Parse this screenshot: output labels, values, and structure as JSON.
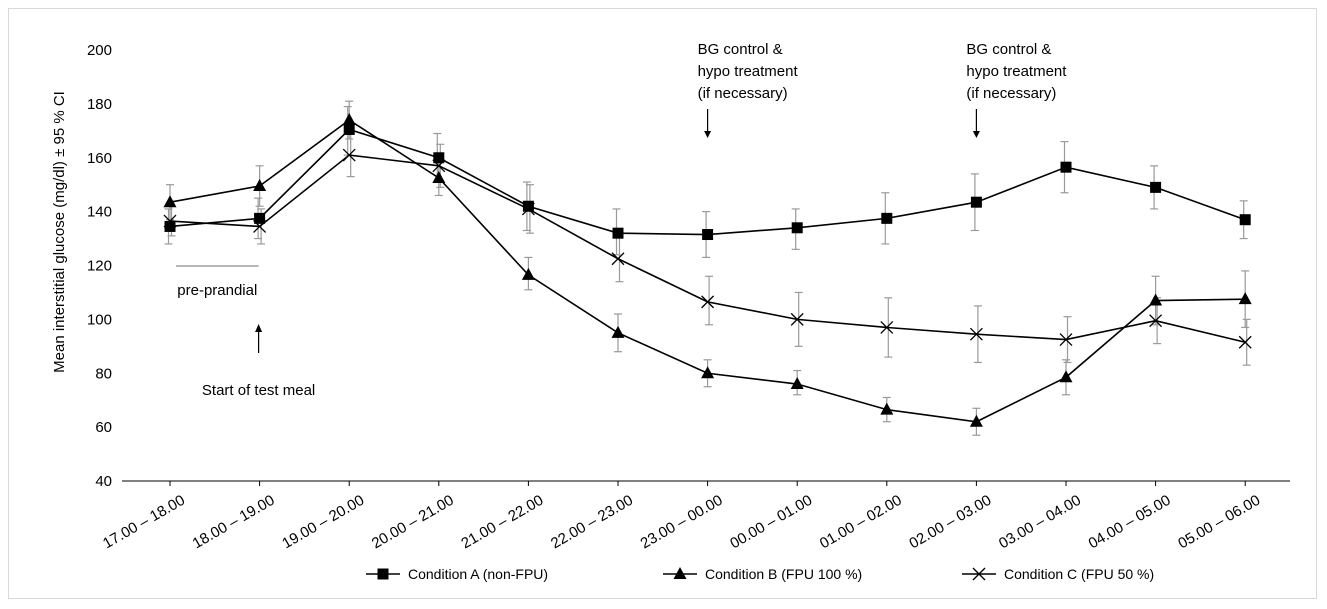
{
  "chart_data": {
    "type": "line",
    "ylabel": "Mean interstitial glucose (mg/dl) ± 95 % CI",
    "xlabel": "",
    "ylim": [
      40,
      200
    ],
    "yticks": [
      40,
      60,
      80,
      100,
      120,
      140,
      160,
      180,
      200
    ],
    "categories": [
      "17.00 – 18.00",
      "18.00 – 19.00",
      "19.00 – 20.00",
      "20.00 – 21.00",
      "21.00 – 22.00",
      "22.00 – 23.00",
      "23.00 – 00.00",
      "00.00 – 01.00",
      "01.00 – 02.00",
      "02.00 – 03.00",
      "03.00 – 04.00",
      "04.00 – 05.00",
      "05.00 – 06.00"
    ],
    "grid": false,
    "legend_position": "bottom",
    "series": [
      {
        "name": "Condition A (non-FPU)",
        "marker": "square",
        "values": [
          134.5,
          137.5,
          170.5,
          160,
          142,
          132,
          131.5,
          134,
          137.5,
          143.5,
          156.5,
          149,
          137
        ],
        "ci_low": [
          128,
          130,
          161,
          151,
          133,
          124,
          123,
          126,
          128,
          133,
          147,
          141,
          130
        ],
        "ci_high": [
          141,
          145,
          179,
          169,
          151,
          141,
          140,
          141,
          147,
          154,
          166,
          157,
          144
        ]
      },
      {
        "name": "Condition B (FPU 100 %)",
        "marker": "triangle",
        "values": [
          143.5,
          149.5,
          174,
          152.5,
          116.5,
          95,
          80,
          76,
          66.5,
          62,
          78.5,
          107,
          107.5
        ],
        "ci_low": [
          137,
          142,
          167,
          146,
          111,
          88,
          75,
          72,
          62,
          57,
          72,
          98,
          97
        ],
        "ci_high": [
          150,
          157,
          181,
          160,
          123,
          102,
          85,
          81,
          71,
          67,
          85,
          116,
          118
        ]
      },
      {
        "name": "Condition C (FPU 50 %)",
        "marker": "x",
        "values": [
          136.5,
          134.5,
          161,
          157,
          141,
          122.5,
          106.5,
          100,
          97,
          94.5,
          92.5,
          99.5,
          91.5
        ],
        "ci_low": [
          131,
          128,
          153,
          149,
          132,
          114,
          98,
          90,
          86,
          84,
          84,
          91,
          83
        ],
        "ci_high": [
          142,
          141,
          169,
          165,
          150,
          131,
          116,
          110,
          108,
          105,
          101,
          108,
          100
        ]
      }
    ],
    "annotations": [
      {
        "id": "bg1",
        "lines": [
          "BG control &",
          "hypo treatment",
          "(if necessary)"
        ],
        "category_index": 6,
        "arrow": "down"
      },
      {
        "id": "bg2",
        "lines": [
          "BG control &",
          "hypo treatment",
          "(if necessary)"
        ],
        "category_index": 9,
        "arrow": "down"
      },
      {
        "id": "preprandial",
        "text": "pre-prandial",
        "span": [
          0,
          1
        ]
      },
      {
        "id": "meal",
        "text": "Start of test meal",
        "category_index": 1,
        "arrow": "up"
      }
    ]
  },
  "colors": {
    "line": "#000000",
    "errorbar": "#9a9a9a",
    "axis": "#000000",
    "preprandial_line": "#8c8c8c"
  }
}
